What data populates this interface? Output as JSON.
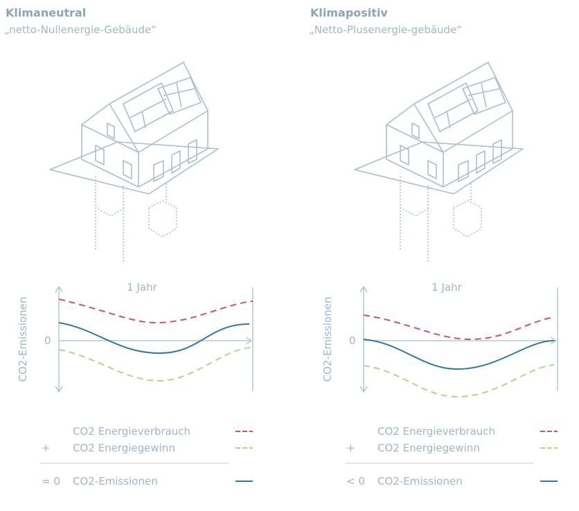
{
  "panels": [
    {
      "title": "Klimaneutral",
      "subtitle": "„netto-Nullenergie-Gebäude“",
      "chart": {
        "x_label": "1 Jahr",
        "y_label": "CO2-Emissionen",
        "zero": "0"
      },
      "legend": [
        {
          "label": "CO2 Energieverbrauch"
        },
        {
          "operator": "+",
          "label": "CO2 Energiegewinn"
        },
        {
          "operator": "= 0",
          "label": "CO2-Emissionen"
        }
      ]
    },
    {
      "title": "Klimapositiv",
      "subtitle": "„Netto-Plusenergie-gebäude“",
      "chart": {
        "x_label": "1 Jahr",
        "y_label": "CO2-Emissionen",
        "zero": "0"
      },
      "legend": [
        {
          "label": "CO2 Energieverbrauch"
        },
        {
          "operator": "+",
          "label": "CO2 Energiegewinn"
        },
        {
          "operator": "< 0",
          "label": "CO2-Emissionen"
        }
      ]
    }
  ]
}
